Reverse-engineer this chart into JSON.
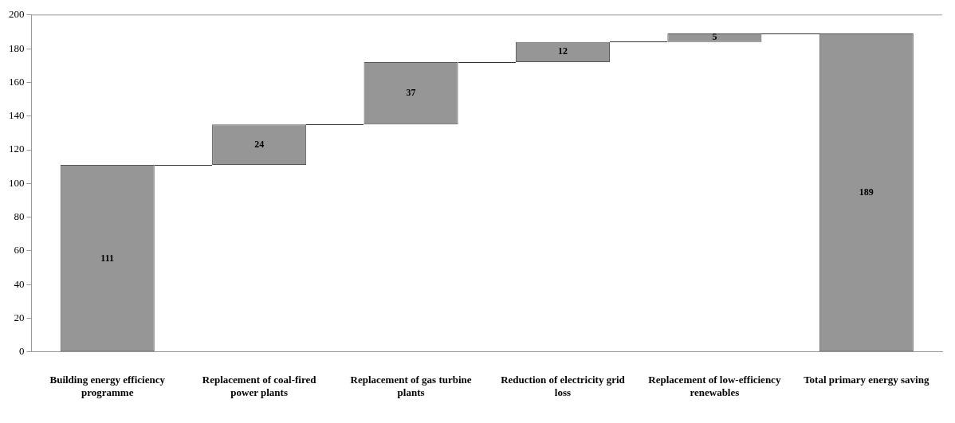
{
  "chart_data": {
    "type": "bar",
    "categories": [
      "Building energy efficiency programme",
      "Replacement of coal-fired power plants",
      "Replacement of gas turbine plants",
      "Reduction of electricity grid loss",
      "Replacement of low-efficiency renewables",
      "Total primary energy saving"
    ],
    "values": [
      111,
      24,
      37,
      12,
      5,
      189
    ],
    "base": [
      0,
      111,
      135,
      172,
      184,
      0
    ],
    "color": "#969696",
    "ylim": [
      0,
      200
    ],
    "yticks": [
      0,
      20,
      40,
      60,
      80,
      100,
      120,
      140,
      160,
      180,
      200
    ],
    "grid": false,
    "legend": false,
    "data_labels": true
  }
}
